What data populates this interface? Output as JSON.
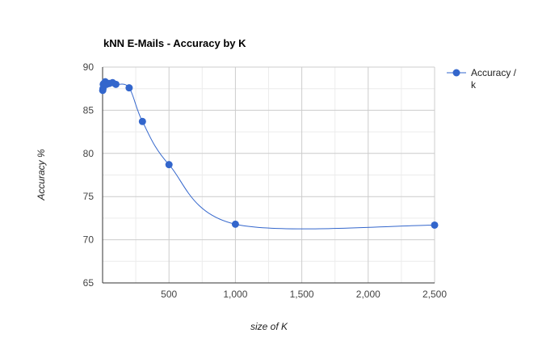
{
  "chart_data": {
    "type": "line",
    "title": "kNN E-Mails - Accuracy by K",
    "xlabel": "size of K",
    "ylabel": "Accuracy %",
    "xlim": [
      0,
      2500
    ],
    "ylim": [
      65,
      90
    ],
    "x_ticks": [
      500,
      1000,
      1500,
      2000,
      2500
    ],
    "x_tick_labels": [
      "500",
      "1,000",
      "1,500",
      "2,000",
      "2,500"
    ],
    "y_ticks": [
      65,
      70,
      75,
      80,
      85,
      90
    ],
    "y_tick_labels": [
      "65",
      "70",
      "75",
      "80",
      "85",
      "90"
    ],
    "grid": true,
    "legend_position": "right",
    "series": [
      {
        "name": "Accuracy / k",
        "name_lines": [
          "Accuracy /",
          "k"
        ],
        "color": "#3366cc",
        "x": [
          1,
          3,
          5,
          10,
          20,
          30,
          50,
          75,
          100,
          200,
          300,
          500,
          1000,
          2500
        ],
        "y": [
          87.3,
          87.5,
          88.0,
          88.1,
          88.3,
          88.0,
          88.1,
          88.2,
          88.0,
          87.6,
          83.7,
          78.7,
          71.8,
          71.7
        ]
      }
    ]
  }
}
